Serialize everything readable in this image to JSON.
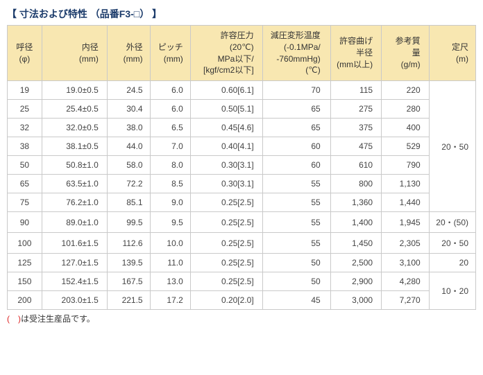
{
  "title": "【 寸法および特性 （品番F3-□） 】",
  "headers": {
    "phi": "呼径\n(φ)",
    "id": "内径\n(mm)",
    "od": "外径\n(mm)",
    "pitch": "ピッチ\n(mm)",
    "press": "許容圧力\n(20℃)\nMPa以下/\n[kgf/cm2以下]",
    "temp": "減圧変形温度\n(-0.1MPa/\n-760mmHg)\n(℃)",
    "bend": "許容曲げ\n半径\n(mm以上)",
    "mass": "参考質量\n(g/m)",
    "len": "定尺\n(m)"
  },
  "rows": [
    {
      "phi": "19",
      "id": "19.0±0.5",
      "od": "24.5",
      "pitch": "6.0",
      "press": "0.60[6.1]",
      "temp": "70",
      "bend": "115",
      "mass": "220"
    },
    {
      "phi": "25",
      "id": "25.4±0.5",
      "od": "30.4",
      "pitch": "6.0",
      "press": "0.50[5.1]",
      "temp": "65",
      "bend": "275",
      "mass": "280"
    },
    {
      "phi": "32",
      "id": "32.0±0.5",
      "od": "38.0",
      "pitch": "6.5",
      "press": "0.45[4.6]",
      "temp": "65",
      "bend": "375",
      "mass": "400"
    },
    {
      "phi": "38",
      "id": "38.1±0.5",
      "od": "44.0",
      "pitch": "7.0",
      "press": "0.40[4.1]",
      "temp": "60",
      "bend": "475",
      "mass": "529"
    },
    {
      "phi": "50",
      "id": "50.8±1.0",
      "od": "58.0",
      "pitch": "8.0",
      "press": "0.30[3.1]",
      "temp": "60",
      "bend": "610",
      "mass": "790"
    },
    {
      "phi": "65",
      "id": "63.5±1.0",
      "od": "72.2",
      "pitch": "8.5",
      "press": "0.30[3.1]",
      "temp": "55",
      "bend": "800",
      "mass": "1,130"
    },
    {
      "phi": "75",
      "id": "76.2±1.0",
      "od": "85.1",
      "pitch": "9.0",
      "press": "0.25[2.5]",
      "temp": "55",
      "bend": "1,360",
      "mass": "1,440"
    },
    {
      "phi": "90",
      "id": "89.0±1.0",
      "od": "99.5",
      "pitch": "9.5",
      "press": "0.25[2.5]",
      "temp": "55",
      "bend": "1,400",
      "mass": "1,945"
    },
    {
      "phi": "100",
      "id": "101.6±1.5",
      "od": "112.6",
      "pitch": "10.0",
      "press": "0.25[2.5]",
      "temp": "55",
      "bend": "1,450",
      "mass": "2,305"
    },
    {
      "phi": "125",
      "id": "127.0±1.5",
      "od": "139.5",
      "pitch": "11.0",
      "press": "0.25[2.5]",
      "temp": "50",
      "bend": "2,500",
      "mass": "3,100"
    },
    {
      "phi": "150",
      "id": "152.4±1.5",
      "od": "167.5",
      "pitch": "13.0",
      "press": "0.25[2.5]",
      "temp": "50",
      "bend": "2,900",
      "mass": "4,280"
    },
    {
      "phi": "200",
      "id": "203.0±1.5",
      "od": "221.5",
      "pitch": "17.2",
      "press": "0.20[2.0]",
      "temp": "45",
      "bend": "3,000",
      "mass": "7,270"
    }
  ],
  "len_groups": [
    {
      "start": 0,
      "span": 7,
      "text": "20・50"
    },
    {
      "start": 7,
      "span": 1,
      "text": "20・(50)"
    },
    {
      "start": 8,
      "span": 1,
      "text": "20・50"
    },
    {
      "start": 9,
      "span": 1,
      "text": "20"
    },
    {
      "start": 10,
      "span": 2,
      "text": "10・20"
    }
  ],
  "footnote_paren": "(　)",
  "footnote_rest": "は受注生産品です。"
}
